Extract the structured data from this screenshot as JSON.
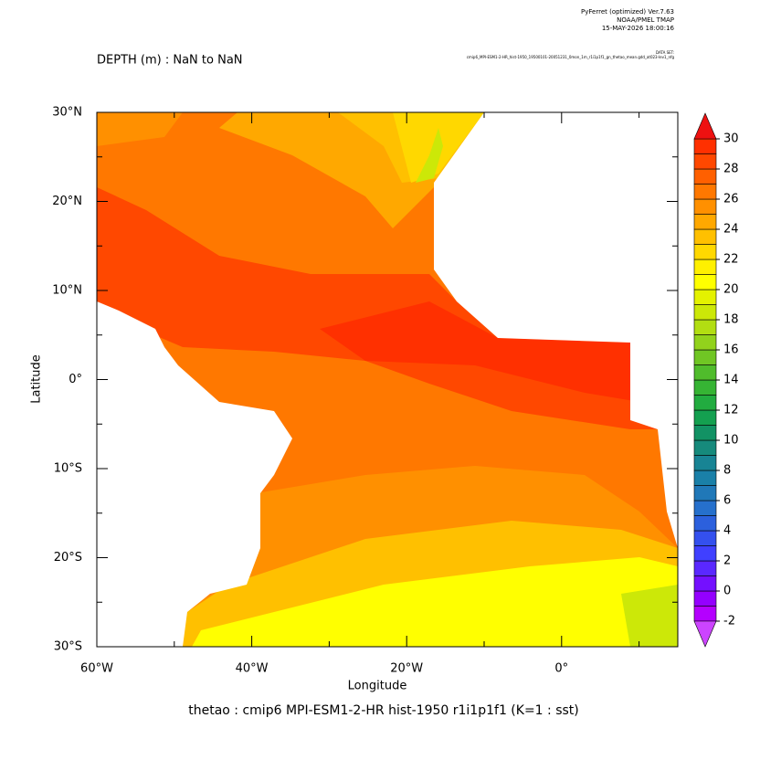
{
  "chart_data": {
    "type": "map",
    "title": "DEPTH (m) : NaN to NaN",
    "program": "PyFerret (optimized) Ver.7.63",
    "institution": "NOAA/PMEL TMAP",
    "timestamp": "15-MAY-2026 18:00:16",
    "dataset_label": "DATA SET:",
    "dataset": "cmip6_MPI-ESM1-2-HR_hist-1950_19500101-20051231_0mon_1m_r1i1p1f1_gn_thetao_mean.gdd_at023-lev1_nfg",
    "caption": "thetao : cmip6 MPI-ESM1-2-HR hist-1950 r1i1p1f1   (K=1 : sst)",
    "xlabel": "Longitude",
    "ylabel": "Latitude",
    "xlim": [
      -60,
      15
    ],
    "ylim": [
      -30,
      30
    ],
    "xticks": [
      {
        "value": -60,
        "label": "60°W"
      },
      {
        "value": -40,
        "label": "40°W"
      },
      {
        "value": -20,
        "label": "20°W"
      },
      {
        "value": 0,
        "label": "0°"
      }
    ],
    "xminor": [
      -50,
      -30,
      -10,
      10
    ],
    "yticks": [
      {
        "value": 30,
        "label": "30°N"
      },
      {
        "value": 20,
        "label": "20°N"
      },
      {
        "value": 10,
        "label": "10°N"
      },
      {
        "value": 0,
        "label": "0°"
      },
      {
        "value": -10,
        "label": "10°S"
      },
      {
        "value": -20,
        "label": "20°S"
      },
      {
        "value": -30,
        "label": "30°S"
      }
    ],
    "yminor": [
      25,
      15,
      5,
      -5,
      -15,
      -25
    ],
    "colorbar": {
      "levels": [
        -2,
        -1,
        0,
        1,
        2,
        3,
        4,
        5,
        6,
        7,
        8,
        9,
        10,
        11,
        12,
        13,
        14,
        15,
        16,
        17,
        18,
        19,
        20,
        21,
        22,
        23,
        24,
        25,
        26,
        27,
        28,
        29,
        30
      ],
      "colors": [
        "#b400ff",
        "#9400ff",
        "#7410ff",
        "#5a28ff",
        "#4040ff",
        "#3450ee",
        "#2c60dd",
        "#2670cc",
        "#2078b8",
        "#1a80a8",
        "#188494",
        "#168a7c",
        "#129264",
        "#14a050",
        "#22ac40",
        "#36b434",
        "#50bc2c",
        "#70c624",
        "#92d21c",
        "#b2de12",
        "#cce808",
        "#e4f200",
        "#ffff00",
        "#fff000",
        "#ffd800",
        "#ffc000",
        "#ffa800",
        "#ff9000",
        "#ff7800",
        "#ff6000",
        "#ff4800",
        "#ff3000"
      ],
      "over_color": "#ee1111",
      "under_color": "#cc44ff",
      "ticks": [
        -2,
        0,
        2,
        4,
        6,
        8,
        10,
        12,
        14,
        16,
        18,
        20,
        22,
        24,
        26,
        28,
        30
      ]
    }
  }
}
